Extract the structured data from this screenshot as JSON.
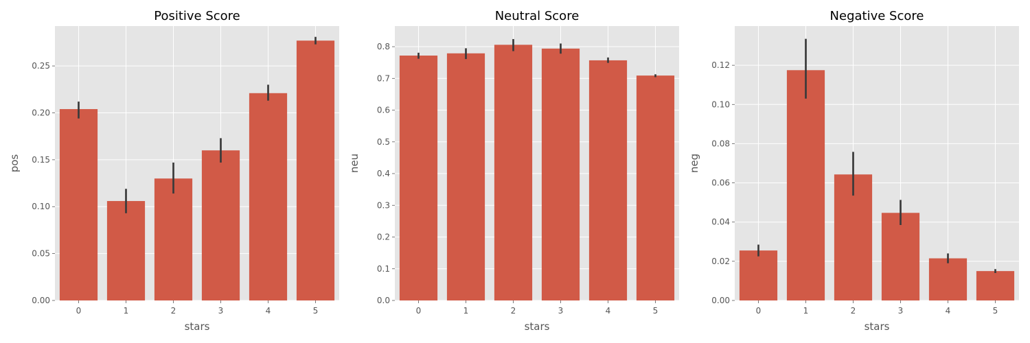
{
  "chart_data": [
    {
      "type": "bar",
      "title": "Positive Score",
      "xlabel": "stars",
      "ylabel": "pos",
      "categories": [
        "0",
        "1",
        "2",
        "3",
        "4",
        "5"
      ],
      "values": [
        0.204,
        0.106,
        0.13,
        0.16,
        0.221,
        0.277
      ],
      "ci_low": [
        0.194,
        0.093,
        0.114,
        0.147,
        0.213,
        0.273
      ],
      "ci_high": [
        0.212,
        0.119,
        0.147,
        0.173,
        0.23,
        0.281
      ],
      "ylim": [
        0,
        0.2925
      ],
      "yticks": [
        0.0,
        0.05,
        0.1,
        0.15,
        0.2,
        0.25
      ],
      "ytick_labels": [
        "0.00",
        "0.05",
        "0.10",
        "0.15",
        "0.20",
        "0.25"
      ],
      "grid": true,
      "color": "#d15a47"
    },
    {
      "type": "bar",
      "title": "Neutral Score",
      "xlabel": "stars",
      "ylabel": "neu",
      "categories": [
        "0",
        "1",
        "2",
        "3",
        "4",
        "5"
      ],
      "values": [
        0.772,
        0.779,
        0.806,
        0.794,
        0.757,
        0.709
      ],
      "ci_low": [
        0.762,
        0.761,
        0.786,
        0.778,
        0.749,
        0.704
      ],
      "ci_high": [
        0.781,
        0.795,
        0.824,
        0.81,
        0.766,
        0.713
      ],
      "ylim": [
        0,
        0.865
      ],
      "yticks": [
        0.0,
        0.1,
        0.2,
        0.3,
        0.4,
        0.5,
        0.6,
        0.7,
        0.8
      ],
      "ytick_labels": [
        "0.0",
        "0.1",
        "0.2",
        "0.3",
        "0.4",
        "0.5",
        "0.6",
        "0.7",
        "0.8"
      ],
      "grid": true,
      "color": "#d15a47"
    },
    {
      "type": "bar",
      "title": "Negative Score",
      "xlabel": "stars",
      "ylabel": "neg",
      "categories": [
        "0",
        "1",
        "2",
        "3",
        "4",
        "5"
      ],
      "values": [
        0.0255,
        0.1175,
        0.0643,
        0.0447,
        0.0215,
        0.015
      ],
      "ci_low": [
        0.0225,
        0.103,
        0.0535,
        0.0385,
        0.019,
        0.014
      ],
      "ci_high": [
        0.0285,
        0.1335,
        0.0758,
        0.0513,
        0.024,
        0.016
      ],
      "ylim": [
        0,
        0.14
      ],
      "yticks": [
        0.0,
        0.02,
        0.04,
        0.06,
        0.08,
        0.1,
        0.12
      ],
      "ytick_labels": [
        "0.00",
        "0.02",
        "0.04",
        "0.06",
        "0.08",
        "0.10",
        "0.12"
      ],
      "grid": true,
      "color": "#d15a47"
    }
  ]
}
